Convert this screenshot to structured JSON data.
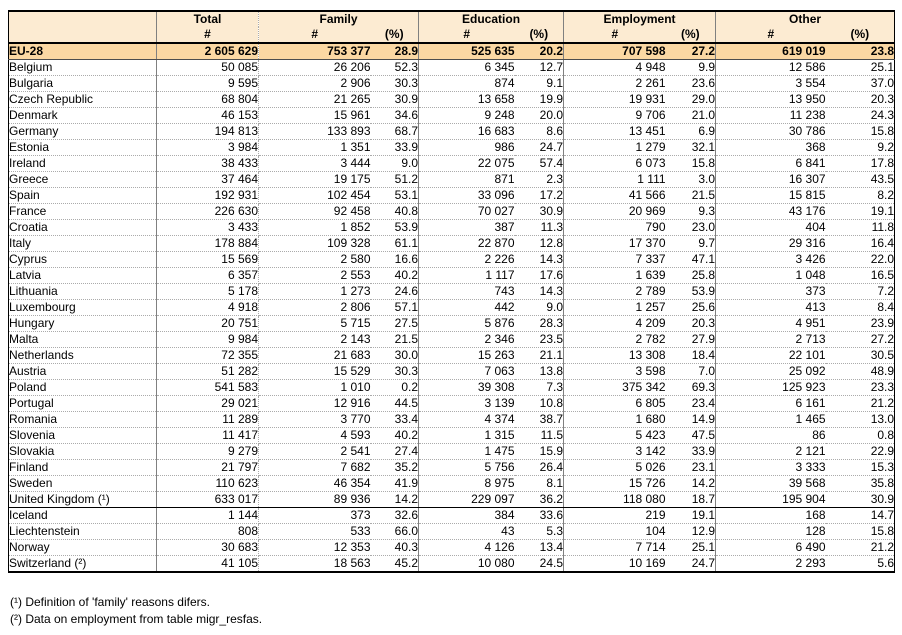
{
  "colors": {
    "header_bg": "#FCEBD2",
    "eu_row_bg": "#FBD8A3",
    "grid_solid": "#808080",
    "grid_dotted": "#ABABAB",
    "frame": "#000000"
  },
  "table": {
    "corner_label": "",
    "groups": [
      {
        "label": "Total",
        "cols": [
          "#"
        ]
      },
      {
        "label": "Family",
        "cols": [
          "#",
          "(%)"
        ]
      },
      {
        "label": "Education",
        "cols": [
          "#",
          "(%)"
        ]
      },
      {
        "label": "Employment",
        "cols": [
          "#",
          "(%)"
        ]
      },
      {
        "label": "Other",
        "cols": [
          "#",
          "(%)"
        ]
      }
    ],
    "aggregate_row": {
      "name": "EU-28",
      "values": [
        "2 605 629",
        "753 377",
        "28.9",
        "525 635",
        "20.2",
        "707 598",
        "27.2",
        "619 019",
        "23.8"
      ]
    },
    "rows": [
      {
        "name": "Belgium",
        "section": "eu",
        "values": [
          "50 085",
          "26 206",
          "52.3",
          "6 345",
          "12.7",
          "4 948",
          "9.9",
          "12 586",
          "25.1"
        ]
      },
      {
        "name": "Bulgaria",
        "section": "eu",
        "values": [
          "9 595",
          "2 906",
          "30.3",
          "874",
          "9.1",
          "2 261",
          "23.6",
          "3 554",
          "37.0"
        ]
      },
      {
        "name": "Czech Republic",
        "section": "eu",
        "values": [
          "68 804",
          "21 265",
          "30.9",
          "13 658",
          "19.9",
          "19 931",
          "29.0",
          "13 950",
          "20.3"
        ]
      },
      {
        "name": "Denmark",
        "section": "eu",
        "values": [
          "46 153",
          "15 961",
          "34.6",
          "9 248",
          "20.0",
          "9 706",
          "21.0",
          "11 238",
          "24.3"
        ]
      },
      {
        "name": "Germany",
        "section": "eu",
        "values": [
          "194 813",
          "133 893",
          "68.7",
          "16 683",
          "8.6",
          "13 451",
          "6.9",
          "30 786",
          "15.8"
        ]
      },
      {
        "name": "Estonia",
        "section": "eu",
        "values": [
          "3 984",
          "1 351",
          "33.9",
          "986",
          "24.7",
          "1 279",
          "32.1",
          "368",
          "9.2"
        ]
      },
      {
        "name": "Ireland",
        "section": "eu",
        "values": [
          "38 433",
          "3 444",
          "9.0",
          "22 075",
          "57.4",
          "6 073",
          "15.8",
          "6 841",
          "17.8"
        ]
      },
      {
        "name": "Greece",
        "section": "eu",
        "values": [
          "37 464",
          "19 175",
          "51.2",
          "871",
          "2.3",
          "1 111",
          "3.0",
          "16 307",
          "43.5"
        ]
      },
      {
        "name": "Spain",
        "section": "eu",
        "values": [
          "192 931",
          "102 454",
          "53.1",
          "33 096",
          "17.2",
          "41 566",
          "21.5",
          "15 815",
          "8.2"
        ]
      },
      {
        "name": "France",
        "section": "eu",
        "values": [
          "226 630",
          "92 458",
          "40.8",
          "70 027",
          "30.9",
          "20 969",
          "9.3",
          "43 176",
          "19.1"
        ]
      },
      {
        "name": "Croatia",
        "section": "eu",
        "values": [
          "3 433",
          "1 852",
          "53.9",
          "387",
          "11.3",
          "790",
          "23.0",
          "404",
          "11.8"
        ]
      },
      {
        "name": "Italy",
        "section": "eu",
        "values": [
          "178 884",
          "109 328",
          "61.1",
          "22 870",
          "12.8",
          "17 370",
          "9.7",
          "29 316",
          "16.4"
        ]
      },
      {
        "name": "Cyprus",
        "section": "eu",
        "values": [
          "15 569",
          "2 580",
          "16.6",
          "2 226",
          "14.3",
          "7 337",
          "47.1",
          "3 426",
          "22.0"
        ]
      },
      {
        "name": "Latvia",
        "section": "eu",
        "values": [
          "6 357",
          "2 553",
          "40.2",
          "1 117",
          "17.6",
          "1 639",
          "25.8",
          "1 048",
          "16.5"
        ]
      },
      {
        "name": "Lithuania",
        "section": "eu",
        "values": [
          "5 178",
          "1 273",
          "24.6",
          "743",
          "14.3",
          "2 789",
          "53.9",
          "373",
          "7.2"
        ]
      },
      {
        "name": "Luxembourg",
        "section": "eu",
        "values": [
          "4 918",
          "2 806",
          "57.1",
          "442",
          "9.0",
          "1 257",
          "25.6",
          "413",
          "8.4"
        ]
      },
      {
        "name": "Hungary",
        "section": "eu",
        "values": [
          "20 751",
          "5 715",
          "27.5",
          "5 876",
          "28.3",
          "4 209",
          "20.3",
          "4 951",
          "23.9"
        ]
      },
      {
        "name": "Malta",
        "section": "eu",
        "values": [
          "9 984",
          "2 143",
          "21.5",
          "2 346",
          "23.5",
          "2 782",
          "27.9",
          "2 713",
          "27.2"
        ]
      },
      {
        "name": "Netherlands",
        "section": "eu",
        "values": [
          "72 355",
          "21 683",
          "30.0",
          "15 263",
          "21.1",
          "13 308",
          "18.4",
          "22 101",
          "30.5"
        ]
      },
      {
        "name": "Austria",
        "section": "eu",
        "values": [
          "51 282",
          "15 529",
          "30.3",
          "7 063",
          "13.8",
          "3 598",
          "7.0",
          "25 092",
          "48.9"
        ]
      },
      {
        "name": "Poland",
        "section": "eu",
        "values": [
          "541 583",
          "1 010",
          "0.2",
          "39 308",
          "7.3",
          "375 342",
          "69.3",
          "125 923",
          "23.3"
        ]
      },
      {
        "name": "Portugal",
        "section": "eu",
        "values": [
          "29 021",
          "12 916",
          "44.5",
          "3 139",
          "10.8",
          "6 805",
          "23.4",
          "6 161",
          "21.2"
        ]
      },
      {
        "name": "Romania",
        "section": "eu",
        "values": [
          "11 289",
          "3 770",
          "33.4",
          "4 374",
          "38.7",
          "1 680",
          "14.9",
          "1 465",
          "13.0"
        ]
      },
      {
        "name": "Slovenia",
        "section": "eu",
        "values": [
          "11 417",
          "4 593",
          "40.2",
          "1 315",
          "11.5",
          "5 423",
          "47.5",
          "86",
          "0.8"
        ]
      },
      {
        "name": "Slovakia",
        "section": "eu",
        "values": [
          "9 279",
          "2 541",
          "27.4",
          "1 475",
          "15.9",
          "3 142",
          "33.9",
          "2 121",
          "22.9"
        ]
      },
      {
        "name": "Finland",
        "section": "eu",
        "values": [
          "21 797",
          "7 682",
          "35.2",
          "5 756",
          "26.4",
          "5 026",
          "23.1",
          "3 333",
          "15.3"
        ]
      },
      {
        "name": "Sweden",
        "section": "eu",
        "values": [
          "110 623",
          "46 354",
          "41.9",
          "8 975",
          "8.1",
          "15 726",
          "14.2",
          "39 568",
          "35.8"
        ]
      },
      {
        "name": "United Kingdom (¹)",
        "section": "eu",
        "values": [
          "633 017",
          "89 936",
          "14.2",
          "229 097",
          "36.2",
          "118 080",
          "18.7",
          "195 904",
          "30.9"
        ]
      },
      {
        "name": "Iceland",
        "section": "efta",
        "values": [
          "1 144",
          "373",
          "32.6",
          "384",
          "33.6",
          "219",
          "19.1",
          "168",
          "14.7"
        ]
      },
      {
        "name": "Liechtenstein",
        "section": "efta",
        "values": [
          "808",
          "533",
          "66.0",
          "43",
          "5.3",
          "104",
          "12.9",
          "128",
          "15.8"
        ]
      },
      {
        "name": "Norway",
        "section": "efta",
        "values": [
          "30 683",
          "12 353",
          "40.3",
          "4 126",
          "13.4",
          "7 714",
          "25.1",
          "6 490",
          "21.2"
        ]
      },
      {
        "name": "Switzerland (²)",
        "section": "efta",
        "values": [
          "41 105",
          "18 563",
          "45.2",
          "10 080",
          "24.5",
          "10 169",
          "24.7",
          "2 293",
          "5.6"
        ]
      }
    ]
  },
  "footnotes": [
    "(¹) Definition of 'family' reasons difers.",
    "(²) Data on employment from table migr_resfas."
  ]
}
